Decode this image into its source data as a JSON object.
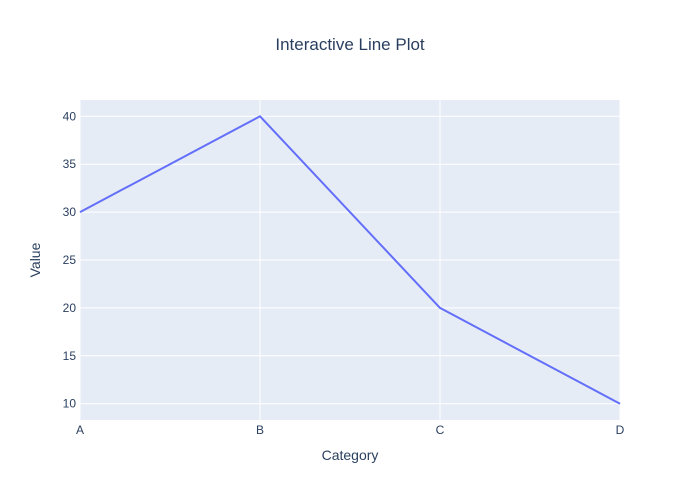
{
  "colors": {
    "plot_bg": "#e5ecf6",
    "grid": "#ffffff",
    "line": "#636efa",
    "text": "#2a3f5f"
  },
  "chart_data": {
    "type": "line",
    "title": "Interactive Line Plot",
    "xlabel": "Category",
    "ylabel": "Value",
    "categories": [
      "A",
      "B",
      "C",
      "D"
    ],
    "series": [
      {
        "values": [
          30,
          40,
          20,
          10
        ]
      }
    ],
    "ylim": [
      8.3,
      41.7
    ],
    "yticks": [
      10,
      15,
      20,
      25,
      30,
      35,
      40
    ],
    "grid": true,
    "legend": "none"
  }
}
